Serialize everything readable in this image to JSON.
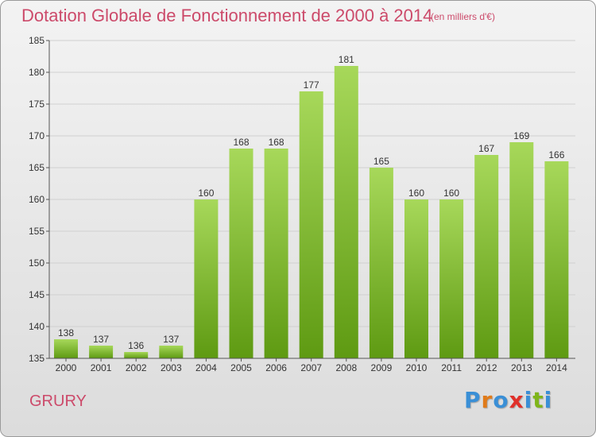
{
  "header": {
    "title": "Dotation Globale de Fonctionnement de 2000 à 2014",
    "unit": "(en milliers d'€)"
  },
  "footer": {
    "place": "GRURY",
    "brand_letters": [
      "P",
      "r",
      "o",
      "x",
      "i",
      "t",
      "i"
    ],
    "brand_colors": [
      "#3a8fd6",
      "#e07b1a",
      "#3a8fd6",
      "#e0302a",
      "#3a8fd6",
      "#7fb51a",
      "#3a8fd6"
    ]
  },
  "colors": {
    "title": "#cc4a6a",
    "bar_top": "#a7d85a",
    "bar_bottom": "#5e9a12",
    "grid": "#d0d0d0",
    "axis": "#555555"
  },
  "chart_data": {
    "type": "bar",
    "categories": [
      "2000",
      "2001",
      "2002",
      "2003",
      "2004",
      "2005",
      "2006",
      "2007",
      "2008",
      "2009",
      "2010",
      "2011",
      "2012",
      "2013",
      "2014"
    ],
    "values": [
      138,
      137,
      136,
      137,
      160,
      168,
      168,
      177,
      181,
      165,
      160,
      160,
      167,
      169,
      166
    ],
    "ylim": [
      135,
      185
    ],
    "yticks": [
      135,
      140,
      145,
      150,
      155,
      160,
      165,
      170,
      175,
      180,
      185
    ],
    "grid": true
  }
}
